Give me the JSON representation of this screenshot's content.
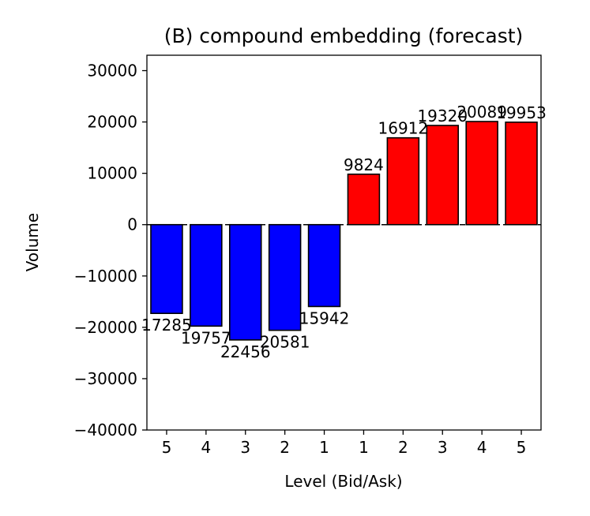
{
  "chart_data": {
    "type": "bar",
    "title": "(B) compound embedding (forecast)",
    "xlabel": "Level (Bid/Ask)",
    "ylabel": "Volume",
    "ylim": [
      -40000,
      33000
    ],
    "yticks": [
      -40000,
      -30000,
      -20000,
      -10000,
      0,
      10000,
      20000,
      30000
    ],
    "ytick_labels": [
      "−40000",
      "−30000",
      "−20000",
      "−10000",
      "0",
      "10000",
      "20000",
      "30000"
    ],
    "categories": [
      "5",
      "4",
      "3",
      "2",
      "1",
      "1",
      "2",
      "3",
      "4",
      "5"
    ],
    "values": [
      -17285,
      -19757,
      -22456,
      -20581,
      -15942,
      9824,
      16912,
      19320,
      20089,
      19953
    ],
    "bar_labels": [
      "17285",
      "19757",
      "22456",
      "20581",
      "15942",
      "9824",
      "16912",
      "19320",
      "20089",
      "19953"
    ],
    "colors": {
      "bid": "#0000ff",
      "ask": "#ff0000",
      "edge": "#000000"
    },
    "zero_line": "dashed",
    "grid": false
  }
}
